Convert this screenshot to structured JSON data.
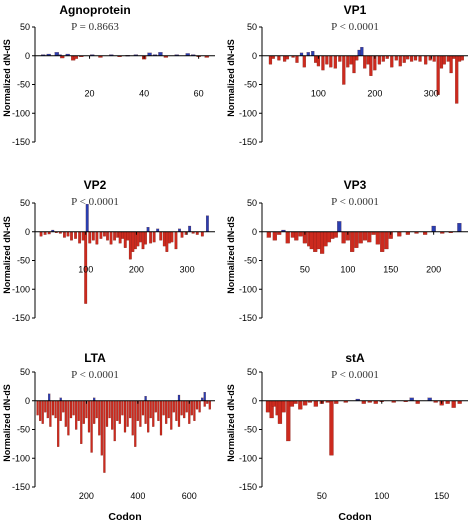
{
  "figure": {
    "colors": {
      "negative": "#cc2a1e",
      "positive": "#2a3fb0",
      "neutral": "#c8a22a",
      "axis": "#000000"
    }
  },
  "chart_data": [
    {
      "type": "bar",
      "title": "Agnoprotein",
      "pvalue": "P = 0.8663",
      "ylabel": "Normalized dN-dS",
      "xlabel": "",
      "ylim": [
        -150,
        50
      ],
      "yticks": [
        50,
        0,
        -50,
        -100,
        -150
      ],
      "xlim": [
        0,
        66
      ],
      "xticks": [
        20,
        40,
        60
      ],
      "bars": [
        [
          3,
          2
        ],
        [
          5,
          3
        ],
        [
          8,
          6
        ],
        [
          9,
          2
        ],
        [
          10,
          -4
        ],
        [
          12,
          3
        ],
        [
          14,
          -8
        ],
        [
          15,
          -5
        ],
        [
          17,
          -2
        ],
        [
          21,
          2
        ],
        [
          24,
          -3
        ],
        [
          28,
          2
        ],
        [
          31,
          -2
        ],
        [
          34,
          1
        ],
        [
          37,
          2
        ],
        [
          40,
          -6
        ],
        [
          42,
          5
        ],
        [
          44,
          2
        ],
        [
          46,
          6
        ],
        [
          48,
          -3
        ],
        [
          52,
          2
        ],
        [
          56,
          4
        ],
        [
          58,
          2
        ],
        [
          60,
          -2
        ],
        [
          63,
          -3
        ]
      ]
    },
    {
      "type": "bar",
      "title": "VP1",
      "pvalue": "P < 0.0001",
      "ylabel": "Normalized dN-dS",
      "xlabel": "",
      "ylim": [
        -150,
        50
      ],
      "yticks": [
        50,
        0,
        -50,
        -100,
        -150
      ],
      "xlim": [
        0,
        365
      ],
      "xticks": [
        100,
        200,
        300
      ],
      "bars": [
        [
          15,
          -15
        ],
        [
          20,
          -5
        ],
        [
          30,
          -8
        ],
        [
          40,
          -10
        ],
        [
          45,
          -6
        ],
        [
          55,
          -3
        ],
        [
          62,
          -12
        ],
        [
          70,
          5
        ],
        [
          75,
          -20
        ],
        [
          82,
          6
        ],
        [
          90,
          8
        ],
        [
          95,
          -12
        ],
        [
          100,
          -18
        ],
        [
          108,
          -25
        ],
        [
          115,
          -15
        ],
        [
          122,
          -20
        ],
        [
          130,
          -22
        ],
        [
          138,
          -10
        ],
        [
          145,
          -50
        ],
        [
          152,
          -20
        ],
        [
          158,
          -15
        ],
        [
          163,
          -30
        ],
        [
          168,
          -8
        ],
        [
          172,
          10
        ],
        [
          177,
          15
        ],
        [
          182,
          -22
        ],
        [
          188,
          -15
        ],
        [
          193,
          -35
        ],
        [
          200,
          -25
        ],
        [
          208,
          -15
        ],
        [
          215,
          -10
        ],
        [
          222,
          -5
        ],
        [
          230,
          -20
        ],
        [
          238,
          -8
        ],
        [
          245,
          -18
        ],
        [
          252,
          -12
        ],
        [
          258,
          -6
        ],
        [
          265,
          -10
        ],
        [
          272,
          -8
        ],
        [
          280,
          -10
        ],
        [
          290,
          -15
        ],
        [
          298,
          -8
        ],
        [
          305,
          -10
        ],
        [
          312,
          -68
        ],
        [
          318,
          -22
        ],
        [
          323,
          -15
        ],
        [
          330,
          -10
        ],
        [
          335,
          -30
        ],
        [
          340,
          -5
        ],
        [
          345,
          -83
        ],
        [
          350,
          -10
        ],
        [
          355,
          -8
        ]
      ]
    },
    {
      "type": "bar",
      "title": "VP2",
      "pvalue": "P < 0.0001",
      "ylabel": "Normalized dN-dS",
      "xlabel": "",
      "ylim": [
        -150,
        50
      ],
      "yticks": [
        50,
        0,
        -50,
        -100,
        -150
      ],
      "xlim": [
        0,
        355
      ],
      "xticks": [
        100,
        200,
        300
      ],
      "bars": [
        [
          12,
          -8
        ],
        [
          20,
          -5
        ],
        [
          28,
          -4
        ],
        [
          35,
          3
        ],
        [
          42,
          -2
        ],
        [
          50,
          -3
        ],
        [
          58,
          -10
        ],
        [
          65,
          -8
        ],
        [
          72,
          -15
        ],
        [
          80,
          -12
        ],
        [
          88,
          -20
        ],
        [
          95,
          -15
        ],
        [
          100,
          -125
        ],
        [
          103,
          48
        ],
        [
          108,
          -20
        ],
        [
          115,
          -15
        ],
        [
          122,
          -22
        ],
        [
          130,
          -12
        ],
        [
          137,
          -8
        ],
        [
          143,
          -15
        ],
        [
          150,
          -22
        ],
        [
          157,
          -15
        ],
        [
          163,
          -10
        ],
        [
          168,
          -20
        ],
        [
          173,
          -12
        ],
        [
          178,
          -28
        ],
        [
          183,
          -15
        ],
        [
          188,
          -48
        ],
        [
          193,
          -35
        ],
        [
          198,
          -30
        ],
        [
          203,
          -25
        ],
        [
          208,
          -18
        ],
        [
          213,
          -30
        ],
        [
          218,
          -22
        ],
        [
          223,
          8
        ],
        [
          228,
          -20
        ],
        [
          235,
          -18
        ],
        [
          242,
          5
        ],
        [
          248,
          -15
        ],
        [
          255,
          -25
        ],
        [
          260,
          -35
        ],
        [
          265,
          -20
        ],
        [
          270,
          -18
        ],
        [
          278,
          -30
        ],
        [
          285,
          5
        ],
        [
          290,
          -10
        ],
        [
          298,
          -5
        ],
        [
          305,
          10
        ],
        [
          312,
          -3
        ],
        [
          320,
          -5
        ],
        [
          330,
          -8
        ],
        [
          340,
          28
        ]
      ]
    },
    {
      "type": "bar",
      "title": "VP3",
      "pvalue": "P < 0.0001",
      "ylabel": "Normalized dN-dS",
      "xlabel": "",
      "ylim": [
        -150,
        50
      ],
      "yticks": [
        50,
        0,
        -50,
        -100,
        -150
      ],
      "xlim": [
        0,
        240
      ],
      "xticks": [
        50,
        100,
        150,
        200
      ],
      "bars": [
        [
          8,
          -10
        ],
        [
          15,
          -15
        ],
        [
          20,
          -5
        ],
        [
          25,
          3
        ],
        [
          30,
          -20
        ],
        [
          36,
          -10
        ],
        [
          40,
          -15
        ],
        [
          45,
          -8
        ],
        [
          50,
          -20
        ],
        [
          55,
          -25
        ],
        [
          58,
          -30
        ],
        [
          62,
          -35
        ],
        [
          66,
          -30
        ],
        [
          70,
          -38
        ],
        [
          74,
          -25
        ],
        [
          78,
          -18
        ],
        [
          82,
          -12
        ],
        [
          86,
          -10
        ],
        [
          90,
          18
        ],
        [
          95,
          -20
        ],
        [
          100,
          -15
        ],
        [
          105,
          -35
        ],
        [
          110,
          -28
        ],
        [
          115,
          -20
        ],
        [
          120,
          -15
        ],
        [
          125,
          -18
        ],
        [
          130,
          -5
        ],
        [
          135,
          -22
        ],
        [
          140,
          -35
        ],
        [
          145,
          -30
        ],
        [
          150,
          -12
        ],
        [
          160,
          -8
        ],
        [
          170,
          -5
        ],
        [
          180,
          -3
        ],
        [
          190,
          -5
        ],
        [
          200,
          10
        ],
        [
          210,
          -3
        ],
        [
          220,
          -2
        ],
        [
          230,
          15
        ]
      ]
    },
    {
      "type": "bar",
      "title": "LTA",
      "pvalue": "P < 0.0001",
      "ylabel": "Normalized dN-dS",
      "xlabel": "Codon",
      "ylim": [
        -150,
        50
      ],
      "yticks": [
        50,
        0,
        -50,
        -100,
        -150
      ],
      "xlim": [
        0,
        700
      ],
      "xticks": [
        200,
        400,
        600
      ],
      "bars": [
        [
          10,
          -25
        ],
        [
          20,
          -35
        ],
        [
          30,
          -40
        ],
        [
          40,
          -20
        ],
        [
          50,
          -30
        ],
        [
          60,
          -45
        ],
        [
          70,
          -25
        ],
        [
          80,
          -30
        ],
        [
          90,
          -80
        ],
        [
          100,
          -35
        ],
        [
          110,
          -20
        ],
        [
          120,
          -45
        ],
        [
          130,
          -60
        ],
        [
          140,
          -30
        ],
        [
          150,
          -25
        ],
        [
          160,
          -50
        ],
        [
          170,
          -35
        ],
        [
          180,
          -75
        ],
        [
          190,
          -40
        ],
        [
          200,
          -30
        ],
        [
          210,
          -55
        ],
        [
          220,
          -90
        ],
        [
          230,
          -40
        ],
        [
          240,
          -30
        ],
        [
          250,
          -60
        ],
        [
          260,
          -95
        ],
        [
          270,
          -125
        ],
        [
          280,
          -45
        ],
        [
          290,
          -30
        ],
        [
          300,
          -50
        ],
        [
          310,
          -70
        ],
        [
          320,
          -35
        ],
        [
          330,
          -40
        ],
        [
          340,
          -25
        ],
        [
          350,
          -55
        ],
        [
          360,
          -45
        ],
        [
          370,
          -30
        ],
        [
          380,
          -60
        ],
        [
          390,
          -80
        ],
        [
          400,
          -35
        ],
        [
          410,
          -45
        ],
        [
          420,
          -25
        ],
        [
          430,
          -40
        ],
        [
          440,
          -55
        ],
        [
          450,
          -30
        ],
        [
          460,
          -45
        ],
        [
          470,
          -20
        ],
        [
          480,
          -35
        ],
        [
          490,
          -60
        ],
        [
          500,
          -25
        ],
        [
          510,
          -40
        ],
        [
          520,
          -30
        ],
        [
          530,
          -50
        ],
        [
          540,
          -20
        ],
        [
          550,
          -35
        ],
        [
          560,
          -45
        ],
        [
          570,
          -25
        ],
        [
          580,
          -30
        ],
        [
          590,
          -20
        ],
        [
          600,
          -40
        ],
        [
          610,
          -25
        ],
        [
          620,
          -35
        ],
        [
          630,
          -15
        ],
        [
          640,
          -20
        ],
        [
          650,
          5
        ],
        [
          660,
          -10
        ],
        [
          670,
          -5
        ],
        [
          680,
          -15
        ],
        [
          55,
          12
        ],
        [
          100,
          5
        ],
        [
          230,
          5
        ],
        [
          430,
          8
        ],
        [
          560,
          10
        ],
        [
          660,
          15
        ]
      ]
    },
    {
      "type": "bar",
      "title": "stA",
      "pvalue": "P < 0.0001",
      "ylabel": "Normalized dN-dS",
      "xlabel": "Codon",
      "ylim": [
        -150,
        50
      ],
      "yticks": [
        50,
        0,
        -50,
        -100,
        -150
      ],
      "xlim": [
        0,
        172
      ],
      "xticks": [
        50,
        100,
        150
      ],
      "bars": [
        [
          5,
          -20
        ],
        [
          8,
          -30
        ],
        [
          10,
          -10
        ],
        [
          13,
          -25
        ],
        [
          15,
          -40
        ],
        [
          18,
          -20
        ],
        [
          22,
          -70
        ],
        [
          25,
          -10
        ],
        [
          28,
          -5
        ],
        [
          32,
          -15
        ],
        [
          36,
          -8
        ],
        [
          40,
          -3
        ],
        [
          45,
          -10
        ],
        [
          50,
          -5
        ],
        [
          55,
          -3
        ],
        [
          58,
          -95
        ],
        [
          62,
          -5
        ],
        [
          70,
          -3
        ],
        [
          80,
          3
        ],
        [
          85,
          -5
        ],
        [
          90,
          -3
        ],
        [
          95,
          -5
        ],
        [
          100,
          -2
        ],
        [
          110,
          -3
        ],
        [
          120,
          -2
        ],
        [
          125,
          5
        ],
        [
          130,
          -5
        ],
        [
          140,
          5
        ],
        [
          145,
          -3
        ],
        [
          150,
          -8
        ],
        [
          155,
          -5
        ],
        [
          160,
          -12
        ],
        [
          165,
          -5
        ]
      ]
    }
  ]
}
